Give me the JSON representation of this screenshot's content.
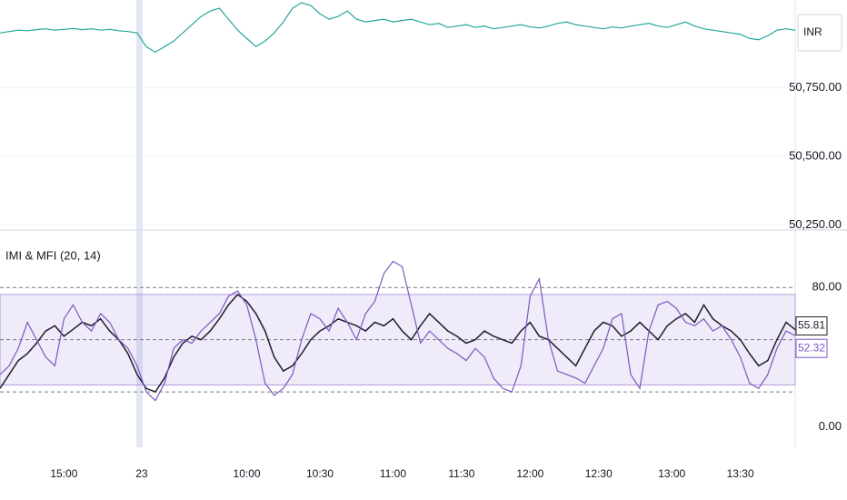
{
  "chart_data": [
    {
      "type": "line",
      "label": "INR",
      "series": [
        {
          "color": "#26a69a",
          "values": [
            50950,
            50955,
            50960,
            50958,
            50962,
            50965,
            50960,
            50963,
            50966,
            50962,
            50965,
            50960,
            50963,
            50958,
            50955,
            50950,
            50900,
            50880,
            50900,
            50920,
            50950,
            50980,
            51010,
            51030,
            51040,
            51000,
            50960,
            50930,
            50900,
            50920,
            50950,
            50990,
            51040,
            51060,
            51050,
            51020,
            51000,
            51010,
            51030,
            51000,
            50990,
            50995,
            51000,
            50990,
            50995,
            51000,
            50990,
            50980,
            50985,
            50970,
            50975,
            50980,
            50970,
            50975,
            50965,
            50970,
            50975,
            50980,
            50972,
            50968,
            50975,
            50985,
            50990,
            50980,
            50975,
            50970,
            50965,
            50972,
            50968,
            50975,
            50980,
            50985,
            50975,
            50970,
            50980,
            50990,
            50975,
            50965,
            50960,
            50955,
            50950,
            50945,
            50930,
            50925,
            50940,
            50960,
            50965,
            50960
          ]
        }
      ],
      "xlim": [
        0,
        87
      ],
      "ylim": [
        50235,
        51070
      ],
      "yticks": [
        {
          "value": 50750,
          "label": "50,750.00"
        },
        {
          "value": 50500,
          "label": "50,500.00"
        },
        {
          "value": 50250,
          "label": "50,250.00"
        }
      ],
      "grid": true
    },
    {
      "type": "line",
      "title": "IMI & MFI (20, 14)",
      "series": [
        {
          "color": "#1e1e2a",
          "values": [
            22,
            30,
            38,
            42,
            48,
            55,
            58,
            52,
            56,
            60,
            58,
            62,
            55,
            50,
            42,
            30,
            22,
            20,
            28,
            40,
            48,
            52,
            50,
            55,
            62,
            70,
            76,
            72,
            65,
            55,
            40,
            32,
            35,
            42,
            50,
            55,
            58,
            62,
            60,
            58,
            55,
            60,
            58,
            62,
            55,
            50,
            58,
            65,
            60,
            55,
            52,
            48,
            50,
            55,
            52,
            50,
            48,
            55,
            60,
            52,
            50,
            45,
            40,
            35,
            45,
            55,
            60,
            58,
            52,
            55,
            60,
            55,
            50,
            58,
            62,
            65,
            60,
            70,
            62,
            58,
            55,
            50,
            42,
            35,
            38,
            50,
            60,
            55.81
          ]
        },
        {
          "color": "#7e57c2",
          "values": [
            30,
            35,
            45,
            60,
            50,
            40,
            35,
            62,
            70,
            60,
            55,
            65,
            60,
            50,
            45,
            35,
            20,
            15,
            25,
            45,
            50,
            48,
            55,
            60,
            65,
            75,
            78,
            70,
            50,
            25,
            18,
            22,
            30,
            50,
            65,
            62,
            55,
            68,
            60,
            50,
            65,
            72,
            88,
            95,
            92,
            70,
            48,
            55,
            50,
            45,
            42,
            38,
            45,
            40,
            28,
            22,
            20,
            35,
            75,
            85,
            50,
            32,
            30,
            28,
            25,
            35,
            45,
            62,
            65,
            30,
            22,
            55,
            70,
            72,
            68,
            60,
            58,
            62,
            55,
            58,
            50,
            40,
            25,
            22,
            30,
            45,
            55,
            52.32
          ]
        }
      ],
      "xlim": [
        0,
        87
      ],
      "ylim": [
        -16,
        112
      ],
      "yticks": [
        {
          "value": 80,
          "label": "80.00"
        },
        {
          "value": 0,
          "label": "0.00"
        }
      ],
      "levels": [
        80,
        50,
        20
      ],
      "fill_range": [
        24,
        76
      ],
      "xticks": [
        {
          "value": 7,
          "label": "15:00"
        },
        {
          "value": 15.5,
          "label": "23"
        },
        {
          "value": 27,
          "label": "10:00"
        },
        {
          "value": 35,
          "label": "10:30"
        },
        {
          "value": 43,
          "label": "11:00"
        },
        {
          "value": 50.5,
          "label": "11:30"
        },
        {
          "value": 58,
          "label": "12:00"
        },
        {
          "value": 65.5,
          "label": "12:30"
        },
        {
          "value": 73.5,
          "label": "13:00"
        },
        {
          "value": 81,
          "label": "13:30"
        }
      ]
    }
  ]
}
